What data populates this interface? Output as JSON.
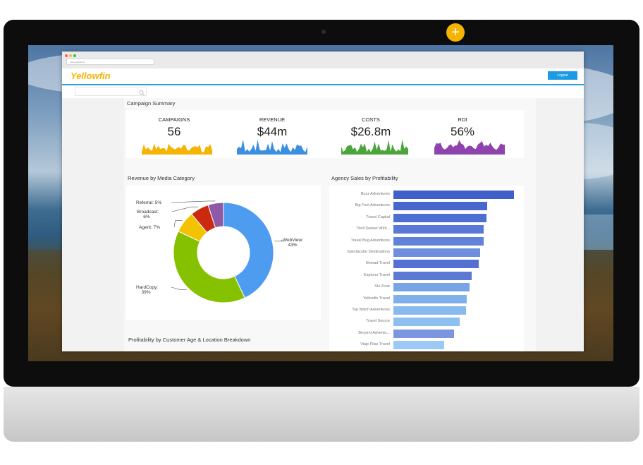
{
  "browser": {
    "url": "www.yellowfin.bi"
  },
  "app": {
    "logo": "Yellowfin",
    "logout_label": "Logout",
    "add_label": "+"
  },
  "campaign_summary": {
    "title": "Campaign Summary",
    "kpis": [
      {
        "label": "CAMPAIGNS",
        "value": "56",
        "color": "#f5b400"
      },
      {
        "label": "REVENUE",
        "value": "$44m",
        "color": "#3b8fe0"
      },
      {
        "label": "COSTS",
        "value": "$26.8m",
        "color": "#4aa53a"
      },
      {
        "label": "ROI",
        "value": "56%",
        "color": "#8e44ad"
      }
    ]
  },
  "revenue_by_media": {
    "title": "Revenue by Media Category",
    "chart_data": {
      "type": "pie",
      "title": "Revenue by Media Category",
      "slices": [
        {
          "name": "WebView",
          "value": 43,
          "label": "WebView:",
          "pct": "43%",
          "color": "#4e9cf0"
        },
        {
          "name": "HardCopy",
          "value": 39,
          "label": "HardCopy:",
          "pct": "39%",
          "color": "#86c100"
        },
        {
          "name": "Agent",
          "value": 7,
          "label": "Agent: 7%",
          "pct": "",
          "color": "#f3c200"
        },
        {
          "name": "Broadcast",
          "value": 6,
          "label": "Broadcast:",
          "pct": "6%",
          "color": "#cc2a10"
        },
        {
          "name": "Referral",
          "value": 5,
          "label": "Referral: 5%",
          "pct": "",
          "color": "#8e5aa8"
        }
      ]
    }
  },
  "agency_sales": {
    "title": "Agency Sales by Profitability",
    "chart_data": {
      "type": "bar",
      "orientation": "horizontal",
      "title": "Agency Sales by Profitability",
      "categories": [
        "Buzz Adventures",
        "Big Foot Adventures",
        "Travel Capital",
        "Thrill Seeker Wint...",
        "Travel Bug Adventures",
        "Spectacular Destinations",
        "Nomad Travel",
        "Explorer Travel",
        "Ski Zone",
        "Yellowfin Travel",
        "Top Notch Adventures",
        "Travel Source",
        "Beyond Adventu...",
        "Viaje Filaz Travel"
      ],
      "values": [
        100,
        78,
        77,
        75,
        75,
        72,
        71,
        65,
        63,
        61,
        60,
        55,
        50,
        42
      ]
    }
  },
  "profitability": {
    "title": "Profitability by Customer Age & Location Breakdown"
  }
}
